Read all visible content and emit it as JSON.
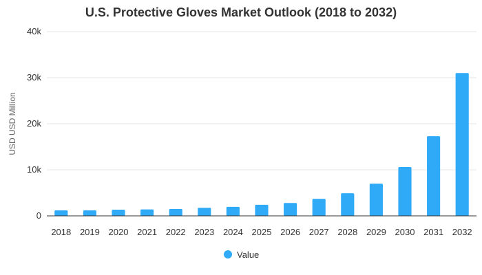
{
  "chart_data": {
    "type": "bar",
    "title": "U.S. Protective Gloves Market Outlook (2018 to 2032)",
    "xlabel": "",
    "ylabel": "USD USD Million",
    "categories": [
      "2018",
      "2019",
      "2020",
      "2021",
      "2022",
      "2023",
      "2024",
      "2025",
      "2026",
      "2027",
      "2028",
      "2029",
      "2030",
      "2031",
      "2032"
    ],
    "series": [
      {
        "name": "Value",
        "values": [
          1200,
          1200,
          1350,
          1400,
          1500,
          1750,
          1950,
          2400,
          2800,
          3700,
          4900,
          7000,
          10600,
          17300,
          31000
        ],
        "color": "#2eaaf7"
      }
    ],
    "ylim": [
      0,
      40000
    ],
    "yticks": [
      0,
      10000,
      20000,
      30000,
      40000
    ],
    "ytick_labels": [
      "0",
      "10k",
      "20k",
      "30k",
      "40k"
    ],
    "grid": true,
    "legend": "bottom-center",
    "colors": {
      "bar": "#2eaaf7",
      "grid": "#e6e6e6",
      "axis": "#333333"
    }
  }
}
